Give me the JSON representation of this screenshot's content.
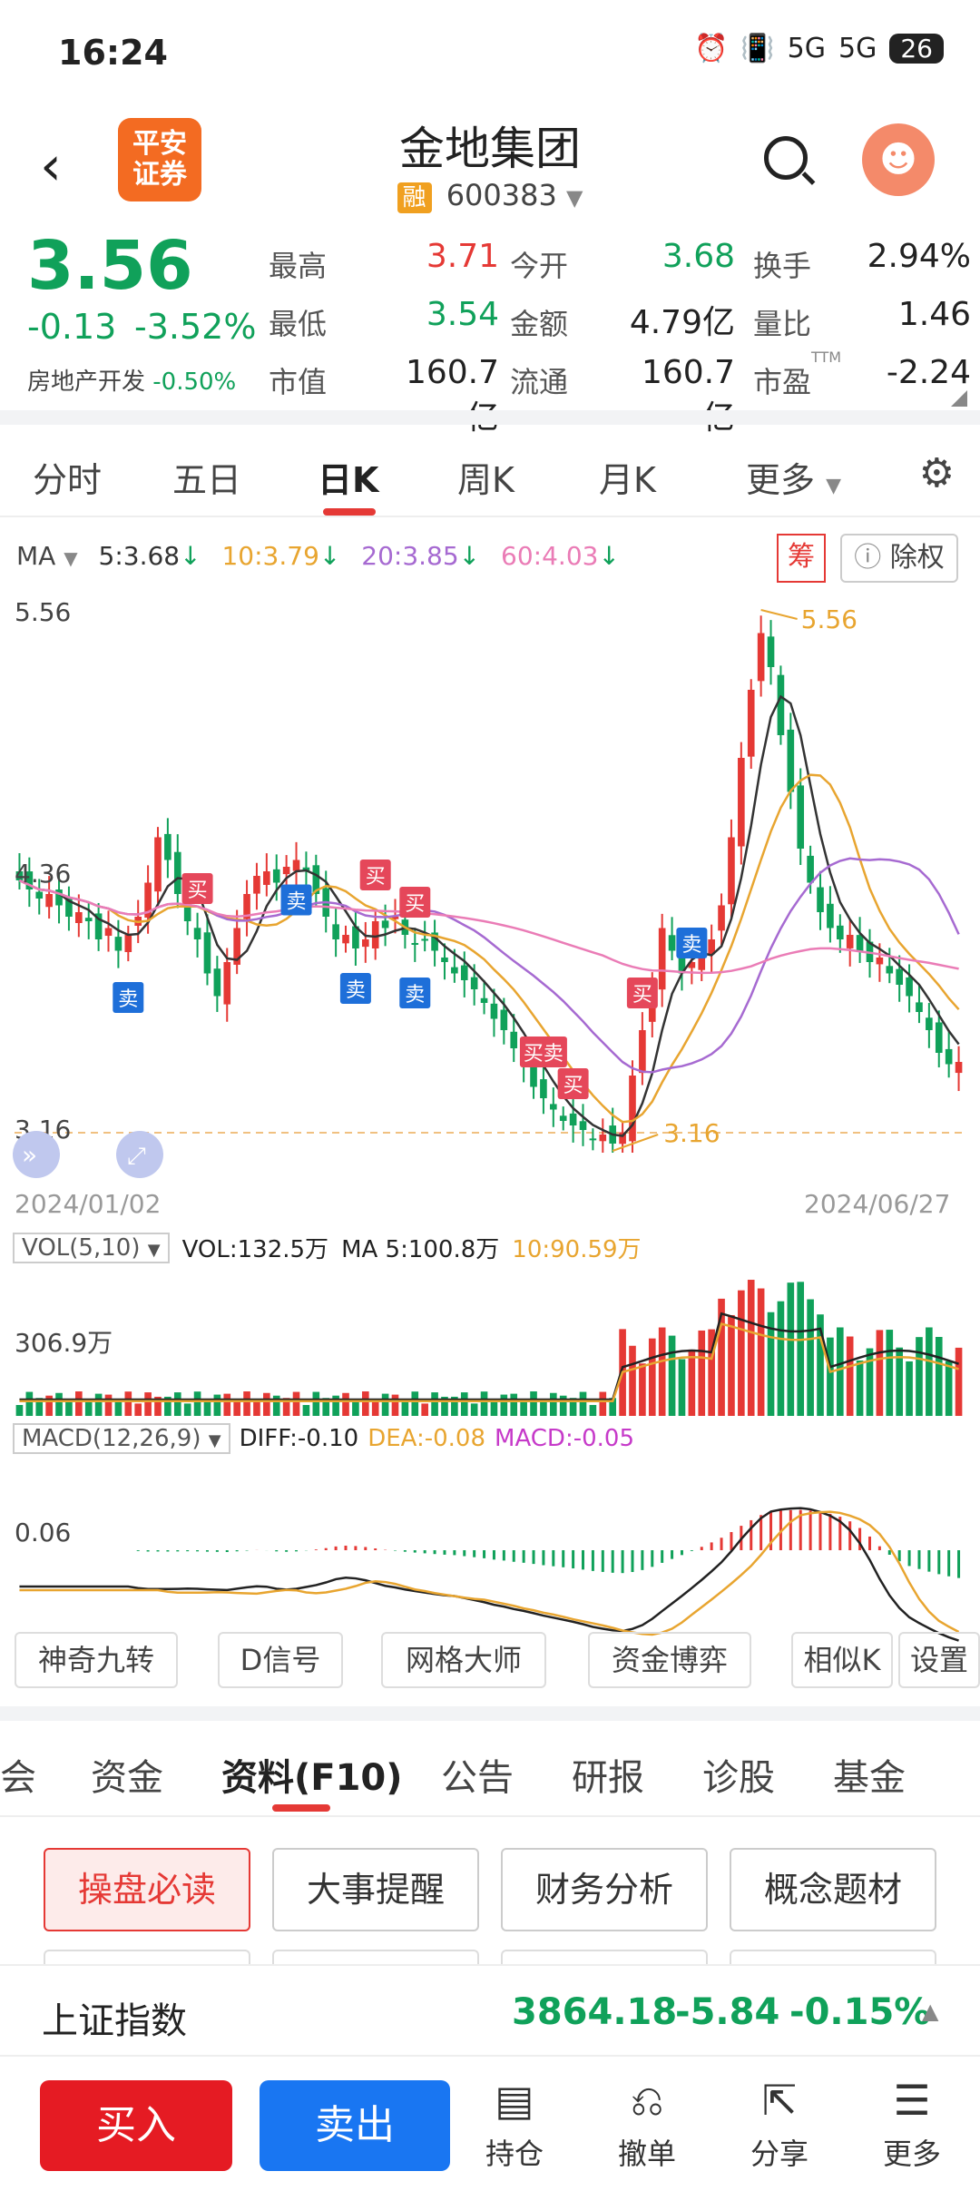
{
  "status": {
    "time": "16:24",
    "battery": "26",
    "signal1": "5G",
    "signal2": "5G"
  },
  "header": {
    "logo_line1": "平安",
    "logo_line2": "证券",
    "title": "金地集团",
    "badge": "融",
    "code": "600383",
    "back_icon": "chevron-left-icon",
    "search_icon": "search-icon",
    "avatar_icon": "avatar-icon"
  },
  "quote": {
    "price": "3.56",
    "change": "-0.13",
    "change_pct": "-3.52%",
    "sector": "房地产开发",
    "sector_pct": "-0.50%",
    "fields": [
      {
        "label": "最高",
        "value": "3.71",
        "color": "#e53935"
      },
      {
        "label": "今开",
        "value": "3.68",
        "color": "#10a15a"
      },
      {
        "label": "换手",
        "value": "2.94%",
        "color": "#222"
      },
      {
        "label": "最低",
        "value": "3.54",
        "color": "#10a15a"
      },
      {
        "label": "金额",
        "value": "4.79亿",
        "color": "#222"
      },
      {
        "label": "量比",
        "value": "1.46",
        "color": "#222"
      },
      {
        "label": "市值",
        "value": "160.7亿",
        "color": "#222"
      },
      {
        "label": "流通",
        "value": "160.7亿",
        "color": "#222"
      },
      {
        "label": "市盈",
        "value": "-2.24",
        "color": "#222"
      }
    ],
    "ttm": "TTM"
  },
  "tabs": {
    "items": [
      "分时",
      "五日",
      "日K",
      "周K",
      "月K",
      "更多"
    ],
    "active": "日K"
  },
  "ma": {
    "label": "MA",
    "ma5": "5:3.68",
    "ma10": "10:3.79",
    "ma20": "20:3.85",
    "ma60": "60:4.03",
    "chou": "筹",
    "chuquan": "除权"
  },
  "chart": {
    "y_top": "5.56",
    "y_mid": "4.36",
    "y_bottom": "3.16",
    "high_label": "5.56",
    "low_label": "3.16",
    "date_start": "2024/01/02",
    "date_end": "2024/06/27",
    "sig_buy": "买",
    "sig_sell": "卖",
    "sig_buysell": "买卖"
  },
  "vol": {
    "label": "VOL(5,10)",
    "vol": "VOL:132.5万",
    "ma5": "MA 5:100.8万",
    "ma10": "10:90.59万",
    "axis": "306.9万"
  },
  "macd": {
    "label": "MACD(12,26,9)",
    "diff": "DIFF:-0.10",
    "dea": "DEA:-0.08",
    "macd": "MACD:-0.05",
    "axis": "0.06"
  },
  "tools": [
    "神奇九转",
    "D信号",
    "网格大师",
    "资金博弈",
    "相似K",
    "设置"
  ],
  "bottom_tabs": {
    "items": [
      "会",
      "资金",
      "资料(F10)",
      "公告",
      "研报",
      "诊股",
      "基金"
    ],
    "active": "资料(F10)"
  },
  "sub_buttons": [
    "操盘必读",
    "大事提醒",
    "财务分析",
    "概念题材"
  ],
  "index": {
    "name": "上证指数",
    "value": "3864.18",
    "change": "-5.84",
    "change_pct": "-0.15%"
  },
  "bottom_bar": {
    "buy": "买入",
    "sell": "卖出",
    "items": [
      {
        "label": "持仓",
        "icon": "document-icon"
      },
      {
        "label": "撤单",
        "icon": "undo-icon"
      },
      {
        "label": "分享",
        "icon": "share-icon"
      },
      {
        "label": "更多",
        "icon": "menu-icon"
      }
    ]
  },
  "chart_data": {
    "type": "candlestick",
    "x_range": [
      "2024/01/02",
      "2024/06/27"
    ],
    "ylim": [
      3.16,
      5.56
    ],
    "high": 5.56,
    "low": 3.16,
    "close_approx": [
      4.36,
      4.32,
      4.28,
      4.3,
      4.25,
      4.2,
      4.22,
      4.18,
      4.1,
      4.15,
      4.05,
      4.12,
      4.2,
      4.35,
      4.55,
      4.45,
      4.3,
      4.18,
      4.1,
      3.95,
      3.85,
      4.0,
      4.15,
      4.3,
      4.38,
      4.4,
      4.35,
      4.42,
      4.45,
      4.4,
      4.3,
      4.2,
      4.1,
      4.12,
      4.06,
      4.1,
      4.18,
      4.15,
      4.2,
      4.12,
      4.08,
      4.1,
      4.05,
      4.0,
      3.95,
      3.92,
      3.88,
      3.82,
      3.75,
      3.7,
      3.62,
      3.55,
      3.45,
      3.4,
      3.35,
      3.3,
      3.28,
      3.26,
      3.22,
      3.24,
      3.2,
      3.25,
      3.5,
      3.7,
      3.9,
      4.15,
      4.05,
      3.95,
      4.0,
      4.05,
      4.1,
      4.25,
      4.55,
      4.9,
      5.2,
      5.45,
      5.3,
      5.0,
      4.75,
      4.5,
      4.35,
      4.22,
      4.15,
      4.1,
      4.12,
      4.05,
      4.0,
      4.02,
      3.95,
      3.9,
      3.85,
      3.78,
      3.7,
      3.6,
      3.55,
      3.56
    ]
  }
}
